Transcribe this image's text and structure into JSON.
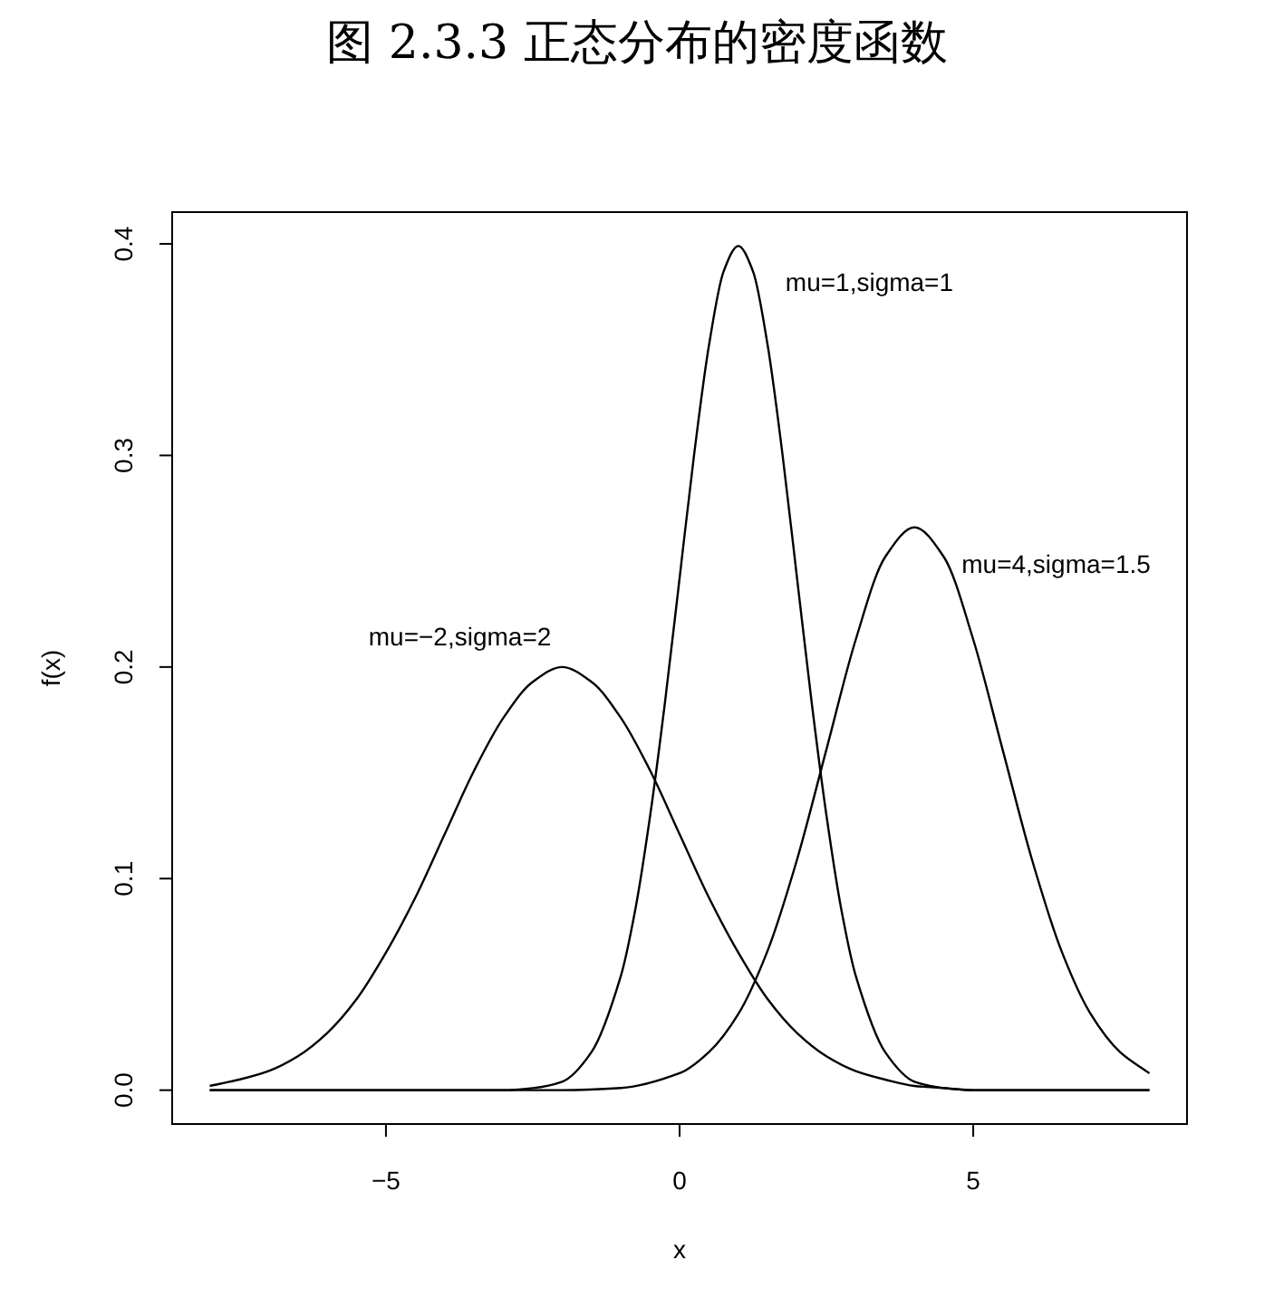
{
  "chart_data": {
    "type": "line",
    "title": "图 2.3.3  正态分布的密度函数",
    "xlabel": "x",
    "ylabel": "f(x)",
    "xlim": [
      -8.64,
      8.64
    ],
    "ylim": [
      -0.016,
      0.415
    ],
    "xticks": [
      -5,
      0,
      5
    ],
    "yticks": [
      {
        "value": 0,
        "label": "0.0"
      },
      0.1,
      0.2,
      0.3,
      0.4
    ],
    "grid": false,
    "marker": "none",
    "line_style": "solid",
    "series": [
      {
        "name": "mu=−2,sigma=2",
        "color": "#000000",
        "x": [
          -8,
          -7.5,
          -7,
          -6.5,
          -6,
          -5.5,
          -5,
          -4.5,
          -4,
          -3.5,
          -3,
          -2.5,
          -2,
          -1.5,
          -1,
          -0.5,
          0,
          0.5,
          1,
          1.5,
          2,
          2.5,
          3,
          3.5,
          4,
          4.5,
          5,
          5.5,
          6,
          6.5,
          7,
          7.5,
          8
        ],
        "values": [
          0.002,
          0.005,
          0.009,
          0.016,
          0.027,
          0.043,
          0.065,
          0.091,
          0.121,
          0.151,
          0.176,
          0.193,
          0.2,
          0.193,
          0.176,
          0.151,
          0.121,
          0.091,
          0.065,
          0.043,
          0.027,
          0.016,
          0.009,
          0.005,
          0.002,
          0.001,
          0,
          0,
          0,
          0,
          0,
          0,
          0
        ]
      },
      {
        "name": "mu=1,sigma=1",
        "color": "#000000",
        "x": [
          -8,
          -4,
          -3,
          -2.5,
          -2,
          -1.5,
          -1,
          -0.75,
          -0.5,
          -0.25,
          0,
          0.25,
          0.5,
          0.75,
          1,
          1.25,
          1.5,
          1.75,
          2,
          2.25,
          2.5,
          2.75,
          3,
          3.5,
          4,
          4.5,
          5,
          6,
          8
        ],
        "values": [
          0,
          0,
          0,
          0.001,
          0.004,
          0.018,
          0.054,
          0.086,
          0.13,
          0.183,
          0.242,
          0.301,
          0.352,
          0.387,
          0.399,
          0.387,
          0.352,
          0.301,
          0.242,
          0.183,
          0.13,
          0.086,
          0.054,
          0.018,
          0.004,
          0.001,
          0,
          0,
          0
        ]
      },
      {
        "name": "mu=4,sigma=1.5",
        "color": "#000000",
        "x": [
          -8,
          -2,
          -1,
          0,
          0.5,
          1,
          1.5,
          2,
          2.5,
          3,
          3.5,
          4,
          4.5,
          5,
          5.5,
          6,
          6.5,
          7,
          7.5,
          8
        ],
        "values": [
          0,
          0,
          0.001,
          0.008,
          0.018,
          0.036,
          0.066,
          0.109,
          0.161,
          0.213,
          0.252,
          0.266,
          0.252,
          0.213,
          0.161,
          0.109,
          0.066,
          0.036,
          0.018,
          0.008
        ]
      }
    ]
  }
}
